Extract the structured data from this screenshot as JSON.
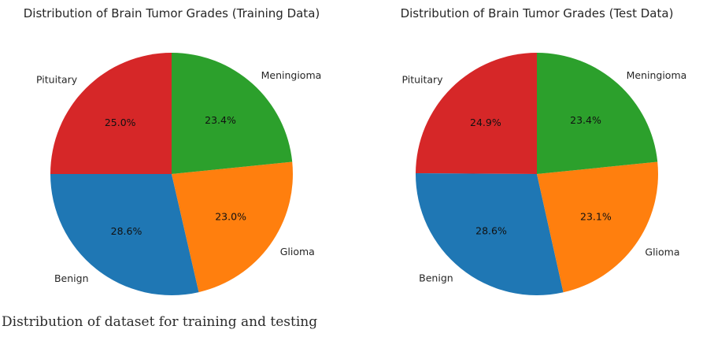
{
  "chart_data": [
    {
      "type": "pie",
      "title": "Distribution of Brain Tumor Grades (Training Data)",
      "categories": [
        "Pituitary",
        "Benign",
        "Glioma",
        "Meningioma"
      ],
      "values": [
        25.0,
        28.6,
        23.0,
        23.4
      ],
      "value_labels": [
        "25.0%",
        "28.6%",
        "23.0%",
        "23.4%"
      ],
      "start_angle_deg": 90,
      "direction": "counterclockwise",
      "legend": "none"
    },
    {
      "type": "pie",
      "title": "Distribution of Brain Tumor Grades (Test Data)",
      "categories": [
        "Pituitary",
        "Benign",
        "Glioma",
        "Meningioma"
      ],
      "values": [
        24.9,
        28.6,
        23.1,
        23.4
      ],
      "value_labels": [
        "24.9%",
        "28.6%",
        "23.1%",
        "23.4%"
      ],
      "start_angle_deg": 90,
      "direction": "counterclockwise",
      "legend": "none"
    }
  ],
  "colors": {
    "Pituitary": "#d62728",
    "Benign": "#1f77b4",
    "Glioma": "#ff7f0e",
    "Meningioma": "#2ca02c"
  },
  "caption": "Distribution of dataset for training and testing"
}
